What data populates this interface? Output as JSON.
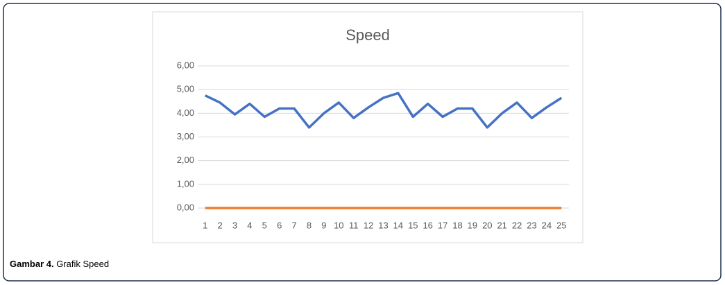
{
  "chart_data": {
    "type": "line",
    "title": "Speed",
    "categories": [
      1,
      2,
      3,
      4,
      5,
      6,
      7,
      8,
      9,
      10,
      11,
      12,
      13,
      14,
      15,
      16,
      17,
      18,
      19,
      20,
      21,
      22,
      23,
      24,
      25
    ],
    "series": [
      {
        "color": "#4472c4",
        "values": [
          4.75,
          4.45,
          3.95,
          4.4,
          3.85,
          4.2,
          4.2,
          3.4,
          4.0,
          4.45,
          3.8,
          4.25,
          4.65,
          4.85,
          3.85,
          4.4,
          3.85,
          4.2,
          4.2,
          3.4,
          4.0,
          4.45,
          3.8,
          4.25,
          4.65
        ]
      },
      {
        "color": "#ed7d31",
        "values": [
          0,
          0,
          0,
          0,
          0,
          0,
          0,
          0,
          0,
          0,
          0,
          0,
          0,
          0,
          0,
          0,
          0,
          0,
          0,
          0,
          0,
          0,
          0,
          0,
          0
        ]
      }
    ],
    "ylim": [
      0,
      6
    ],
    "yticks": [
      {
        "value": 0,
        "label": "0,00"
      },
      {
        "value": 1,
        "label": "1,00"
      },
      {
        "value": 2,
        "label": "2,00"
      },
      {
        "value": 3,
        "label": "3,00"
      },
      {
        "value": 4,
        "label": "4,00"
      },
      {
        "value": 5,
        "label": "5,00"
      },
      {
        "value": 6,
        "label": "6,00"
      }
    ],
    "grid": true
  },
  "caption": {
    "label": "Gambar 4.",
    "text": "Grafik Speed"
  }
}
